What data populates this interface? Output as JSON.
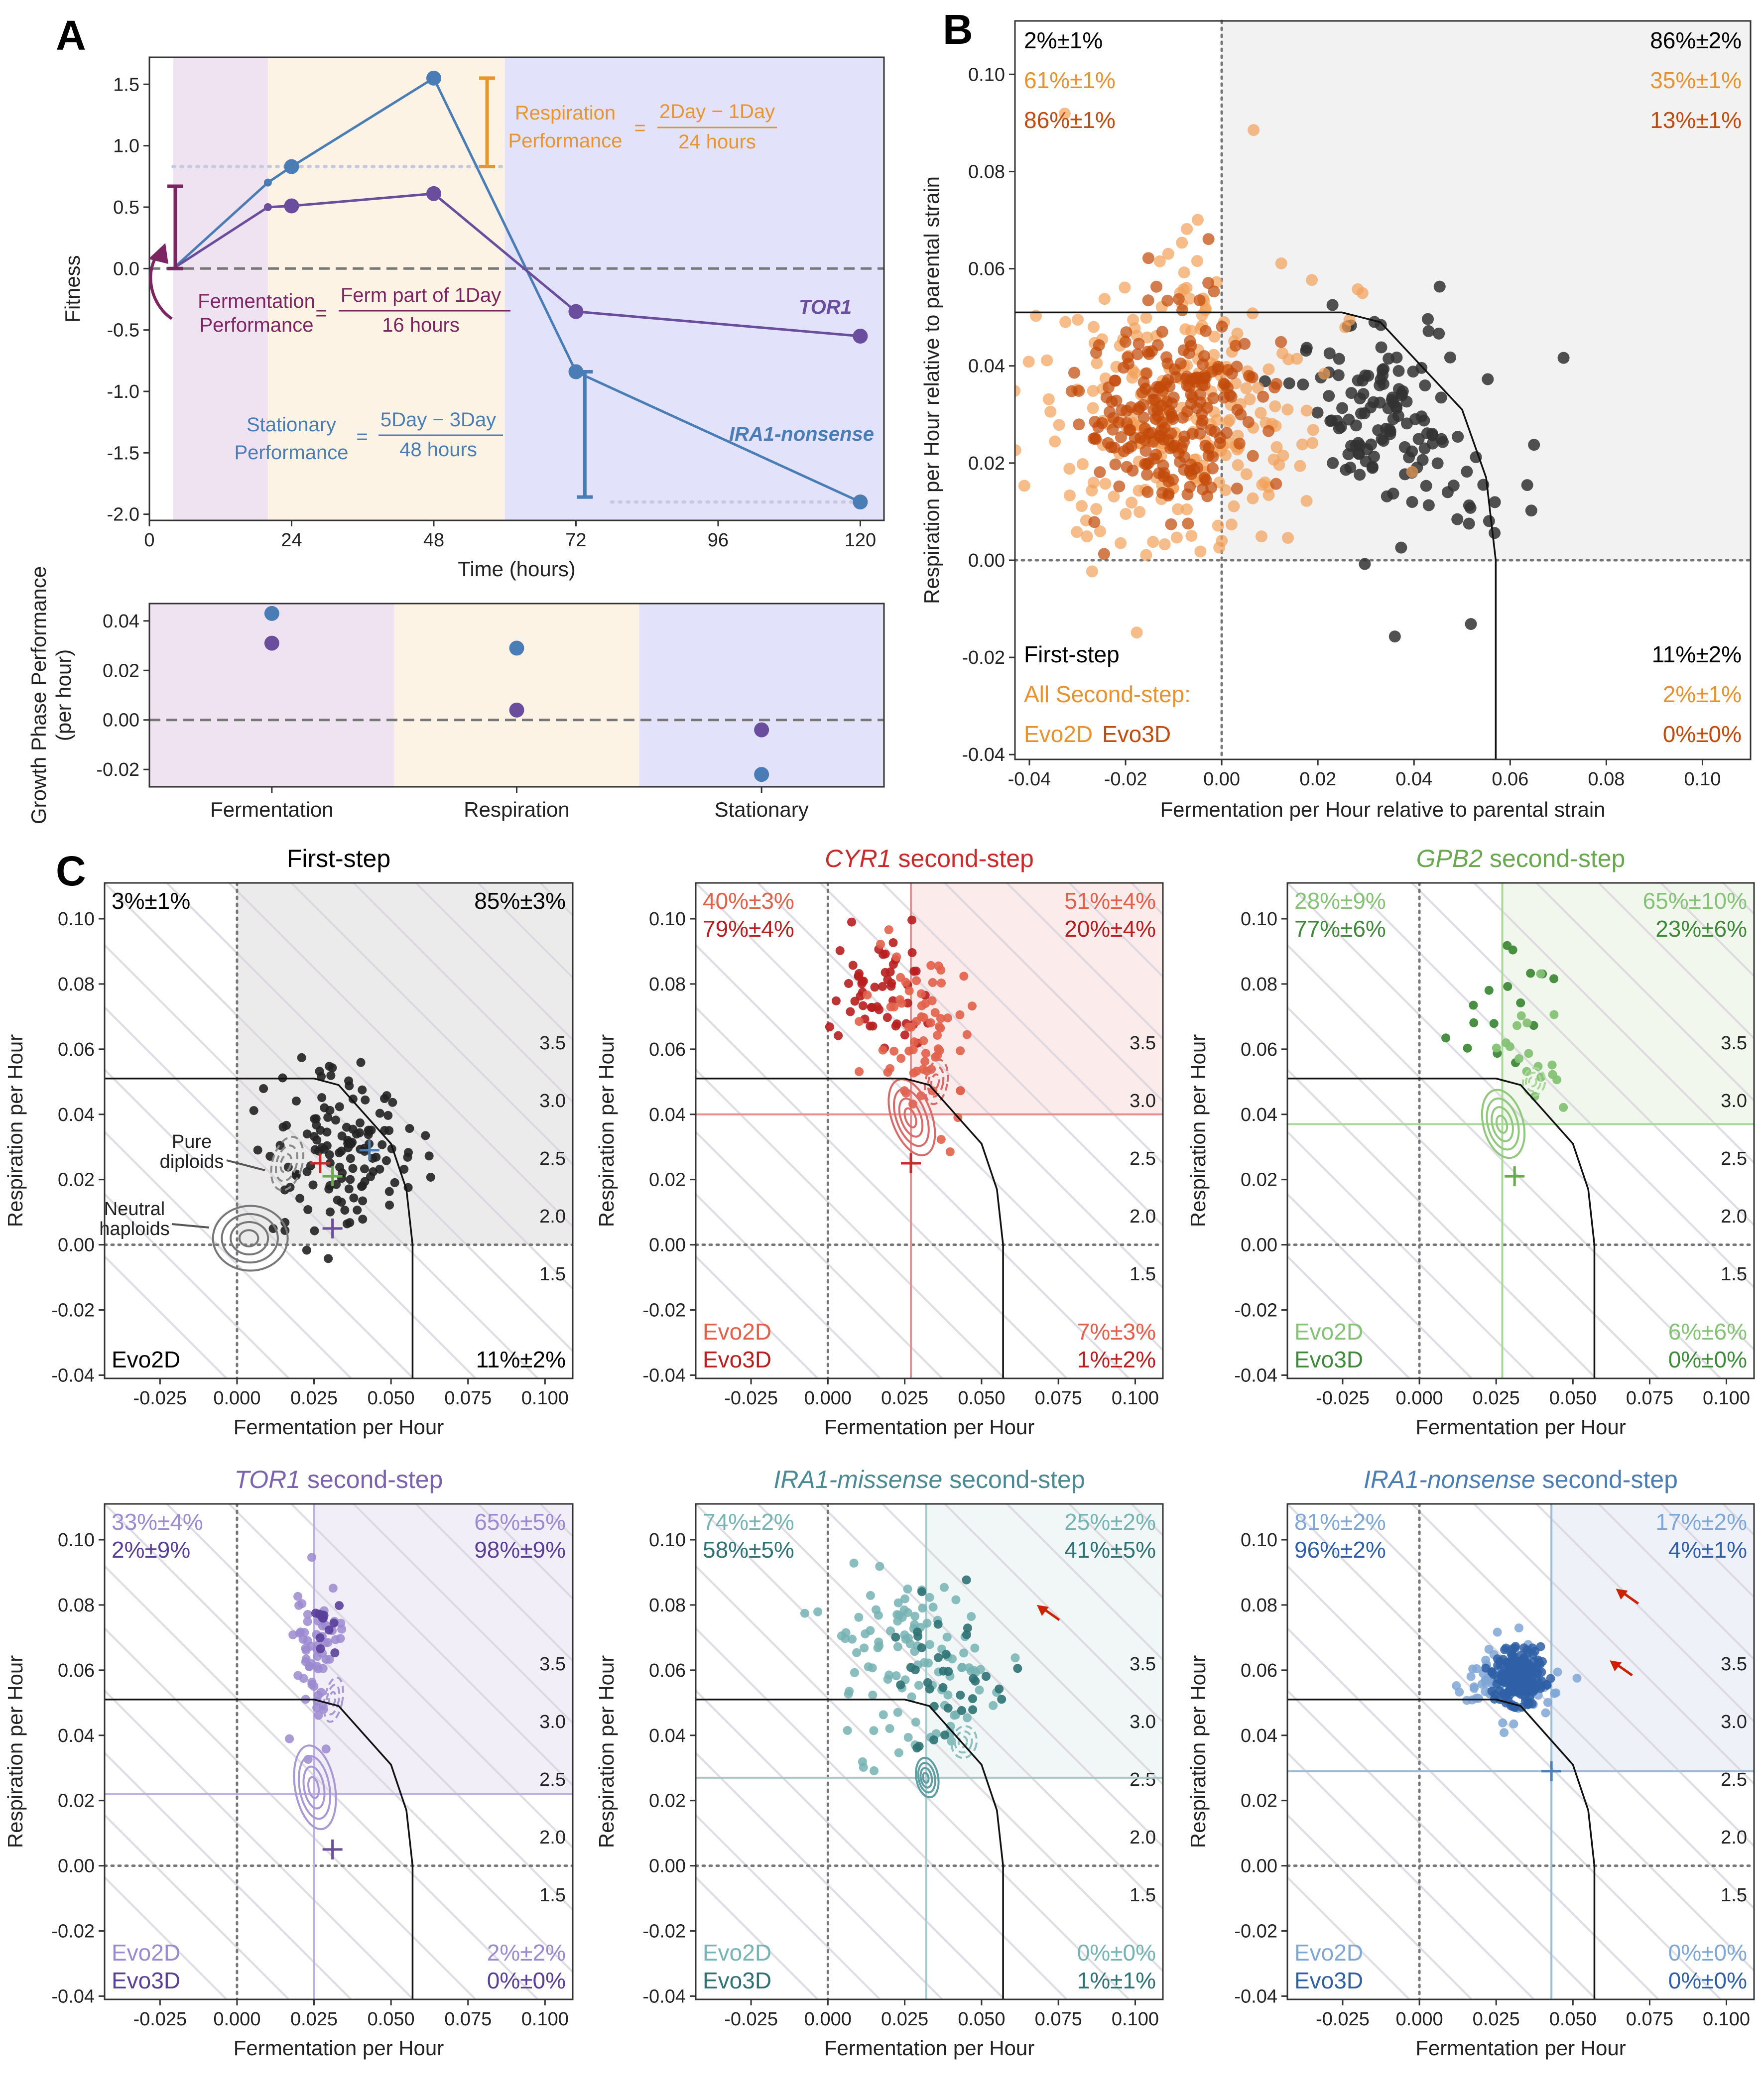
{
  "panel_labels": [
    "A",
    "B",
    "C"
  ],
  "chart_data": [
    {
      "id": "A_top",
      "type": "line",
      "xlabel": "Time (hours)",
      "ylabel": "Fitness",
      "xlim": [
        0,
        124
      ],
      "ylim": [
        -2.05,
        1.72
      ],
      "xticks": [
        0,
        24,
        48,
        72,
        96,
        120
      ],
      "yticks": [
        1.5,
        1.0,
        0.5,
        0.0,
        -0.5,
        -1.0,
        -1.5,
        -2.0
      ],
      "phases": [
        {
          "name": "Fermentation",
          "from": 4,
          "to": 20,
          "color": "#efe3f1"
        },
        {
          "name": "Respiration",
          "from": 20,
          "to": 60,
          "color": "#fcf3e4"
        },
        {
          "name": "Stationary",
          "from": 60,
          "to": 124,
          "color": "#e2e2fb"
        }
      ],
      "series": [
        {
          "name": "IRA1-nonsense",
          "color": "#4a7db6",
          "x": [
            4,
            20,
            24,
            48,
            72,
            120
          ],
          "values": [
            0,
            0.7,
            0.83,
            1.55,
            -0.84,
            -1.9
          ],
          "large_from": 2
        },
        {
          "name": "TOR1",
          "color": "#6a4d9c",
          "x": [
            4,
            20,
            24,
            48,
            72,
            120
          ],
          "values": [
            0,
            0.5,
            0.51,
            0.61,
            -0.35,
            -0.55
          ],
          "large_from": 2
        }
      ],
      "annotations": {
        "respiration_label": [
          "Respiration",
          "Performance"
        ],
        "respiration_eq": "=",
        "respiration_num": "2Day − 1Day",
        "respiration_den": "24 hours",
        "fermentation_label": [
          "Fermentation",
          "Performance"
        ],
        "fermentation_eq": "=",
        "fermentation_num": "Ferm part of 1Day",
        "fermentation_den": "16 hours",
        "stationary_label": [
          "Stationary",
          "Performance"
        ],
        "stationary_eq": "=",
        "stationary_num": "5Day − 3Day",
        "stationary_den": "48 hours",
        "tor1_label": "TOR1",
        "ira1_label": "IRA1-nonsense"
      },
      "colors": {
        "respiration": "#e8952e",
        "fermentation": "#7b2561",
        "stationary": "#4a7db6"
      }
    },
    {
      "id": "A_bottom",
      "type": "scatter",
      "ylabel": [
        "Growth Phase Performance",
        "(per hour)"
      ],
      "categories": [
        "Fermentation",
        "Respiration",
        "Stationary"
      ],
      "ylim": [
        -0.027,
        0.047
      ],
      "yticks": [
        0.04,
        0.02,
        0.0,
        -0.02
      ],
      "series": [
        {
          "name": "IRA1-nonsense",
          "color": "#4a7db6",
          "values": [
            0.043,
            0.029,
            -0.022
          ]
        },
        {
          "name": "TOR1",
          "color": "#6a4d9c",
          "values": [
            0.031,
            0.004,
            -0.004
          ]
        }
      ]
    },
    {
      "id": "B",
      "type": "scatter",
      "xlabel": "Fermentation per Hour relative to parental strain",
      "ylabel": "Respiration per Hour relative to parental strain",
      "xlim": [
        -0.043,
        0.11
      ],
      "ylim": [
        -0.041,
        0.111
      ],
      "xticks": [
        -0.04,
        -0.02,
        0.0,
        0.02,
        0.04,
        0.06,
        0.08,
        0.1
      ],
      "yticks": [
        0.1,
        0.08,
        0.06,
        0.04,
        0.02,
        0.0,
        -0.02,
        -0.04
      ],
      "quadrant_text": {
        "top_left": [
          {
            "text": "2%±1%",
            "color": "#000000"
          },
          {
            "text": "61%±1%",
            "color": "#e8922e"
          },
          {
            "text": "86%±1%",
            "color": "#c24a0a"
          }
        ],
        "top_right": [
          {
            "text": "86%±2%",
            "color": "#000000"
          },
          {
            "text": "35%±1%",
            "color": "#e8922e"
          },
          {
            "text": "13%±1%",
            "color": "#c24a0a"
          }
        ],
        "bottom_right": [
          {
            "text": "11%±2%",
            "color": "#000000"
          },
          {
            "text": "2%±1%",
            "color": "#e8922e"
          },
          {
            "text": "0%±0%",
            "color": "#c24a0a"
          }
        ]
      },
      "legend": {
        "first": "First-step",
        "all": "All Second-step:",
        "evo2d": "Evo2D",
        "evo3d": "Evo3D"
      },
      "groups": [
        {
          "name": "First-step",
          "color": "#333333"
        },
        {
          "name": "Evo2D",
          "color": "#e8922e"
        },
        {
          "name": "Evo3D",
          "color": "#c24a0a"
        }
      ],
      "pareto_front": [
        [
          -0.043,
          0.051
        ],
        [
          0.025,
          0.051
        ],
        [
          0.033,
          0.049
        ],
        [
          0.05,
          0.031
        ],
        [
          0.055,
          0.017
        ],
        [
          0.057,
          0.0
        ],
        [
          0.057,
          -0.041
        ]
      ]
    },
    {
      "id": "C1",
      "type": "scatter",
      "title": "First-step",
      "title_italic": "",
      "title_color": "#000000",
      "xlabel": "Fermentation per Hour",
      "ylabel": "Respiration per Hour",
      "xlim": [
        -0.043,
        0.109
      ],
      "ylim": [
        -0.041,
        0.111
      ],
      "xticks": [
        -0.025,
        0.0,
        0.025,
        0.05,
        0.075,
        0.1
      ],
      "yticks": [
        0.1,
        0.08,
        0.06,
        0.04,
        0.02,
        0.0,
        -0.02,
        -0.04
      ],
      "shade": "#e8e8e8",
      "cross": null,
      "quadrants": {
        "tl": [
          "3%±1%"
        ],
        "tr": [
          "85%±3%"
        ],
        "br": [
          "11%±2%"
        ]
      },
      "quadrant_colors": [
        "#000000"
      ],
      "legend": [
        "Evo2D"
      ],
      "legend_colors": [
        "#000000"
      ],
      "contour_labels": [
        "Pure",
        "diploids",
        "Neutral",
        "haploids"
      ],
      "iso_labels": [
        "3.5",
        "3.0",
        "2.5",
        "2.0",
        "1.5"
      ]
    },
    {
      "id": "C2",
      "type": "scatter",
      "title": " second-step",
      "title_italic": "CYR1",
      "title_color": "#cc2a2a",
      "xlabel": "Fermentation per Hour",
      "ylabel": "Respiration per Hour",
      "xlim": [
        -0.043,
        0.109
      ],
      "ylim": [
        -0.041,
        0.111
      ],
      "xticks": [
        -0.025,
        0.0,
        0.025,
        0.05,
        0.075,
        0.1
      ],
      "yticks": [
        0.1,
        0.08,
        0.06,
        0.04,
        0.02,
        0.0,
        -0.02,
        -0.04
      ],
      "shade": "#fbe7e7",
      "cross": [
        0.027,
        0.04
      ],
      "cross_color": "#e88f8f",
      "quadrants": {
        "tl": [
          "40%±3%",
          "79%±4%"
        ],
        "tr": [
          "51%±4%",
          "20%±4%"
        ],
        "br": [
          "7%±3%",
          "1%±2%"
        ]
      },
      "quadrant_colors": [
        "#e2604a",
        "#b81e1e"
      ],
      "legend": [
        "Evo2D",
        "Evo3D"
      ],
      "legend_colors": [
        "#e2604a",
        "#b81e1e"
      ],
      "iso_labels": [
        "3.5",
        "3.0",
        "2.5",
        "2.0",
        "1.5"
      ]
    },
    {
      "id": "C3",
      "type": "scatter",
      "title": " second-step",
      "title_italic": "GPB2",
      "title_color": "#6aa84f",
      "xlabel": "Fermentation per Hour",
      "ylabel": "Respiration per Hour",
      "xlim": [
        -0.043,
        0.109
      ],
      "ylim": [
        -0.041,
        0.111
      ],
      "xticks": [
        -0.025,
        0.0,
        0.025,
        0.05,
        0.075,
        0.1
      ],
      "yticks": [
        0.1,
        0.08,
        0.06,
        0.04,
        0.02,
        0.0,
        -0.02,
        -0.04
      ],
      "shade": "#eef6ea",
      "cross": [
        0.027,
        0.037
      ],
      "cross_color": "#a9d89a",
      "quadrants": {
        "tl": [
          "28%±9%",
          "77%±6%"
        ],
        "tr": [
          "65%±10%",
          "23%±6%"
        ],
        "br": [
          "6%±6%",
          "0%±0%"
        ]
      },
      "quadrant_colors": [
        "#84c275",
        "#3f8a3a"
      ],
      "legend": [
        "Evo2D",
        "Evo3D"
      ],
      "legend_colors": [
        "#84c275",
        "#3f8a3a"
      ],
      "iso_labels": [
        "3.5",
        "3.0",
        "2.5",
        "2.0",
        "1.5"
      ]
    },
    {
      "id": "C4",
      "type": "scatter",
      "title": " second-step",
      "title_italic": "TOR1",
      "title_color": "#7a62b0",
      "xlabel": "Fermentation per Hour",
      "ylabel": "Respiration per Hour",
      "xlim": [
        -0.043,
        0.109
      ],
      "ylim": [
        -0.041,
        0.111
      ],
      "xticks": [
        -0.025,
        0.0,
        0.025,
        0.05,
        0.075,
        0.1
      ],
      "yticks": [
        0.1,
        0.08,
        0.06,
        0.04,
        0.02,
        0.0,
        -0.02,
        -0.04
      ],
      "shade": "#eeebf7",
      "cross": [
        0.025,
        0.022
      ],
      "cross_color": "#bfb1e2",
      "quadrants": {
        "tl": [
          "33%±4%",
          "2%±9%"
        ],
        "tr": [
          "65%±5%",
          "98%±9%"
        ],
        "br": [
          "2%±2%",
          "0%±0%"
        ]
      },
      "quadrant_colors": [
        "#9b8ad0",
        "#5a3f9a"
      ],
      "legend": [
        "Evo2D",
        "Evo3D"
      ],
      "legend_colors": [
        "#9b8ad0",
        "#5a3f9a"
      ],
      "iso_labels": [
        "3.5",
        "3.0",
        "2.5",
        "2.0",
        "1.5"
      ]
    },
    {
      "id": "C5",
      "type": "scatter",
      "title": " second-step",
      "title_italic": "IRA1-missense",
      "title_color": "#4a8a93",
      "xlabel": "Fermentation per Hour",
      "ylabel": "Respiration per Hour",
      "xlim": [
        -0.043,
        0.109
      ],
      "ylim": [
        -0.041,
        0.111
      ],
      "xticks": [
        -0.025,
        0.0,
        0.025,
        0.05,
        0.075,
        0.1
      ],
      "yticks": [
        0.1,
        0.08,
        0.06,
        0.04,
        0.02,
        0.0,
        -0.02,
        -0.04
      ],
      "shade": "#eef4f5",
      "cross": [
        0.032,
        0.027
      ],
      "cross_color": "#a8c8cc",
      "quadrants": {
        "tl": [
          "74%±2%",
          "58%±5%"
        ],
        "tr": [
          "25%±2%",
          "41%±5%"
        ],
        "br": [
          "0%±0%",
          "1%±1%"
        ]
      },
      "quadrant_colors": [
        "#76b3b3",
        "#2f7274"
      ],
      "legend": [
        "Evo2D",
        "Evo3D"
      ],
      "legend_colors": [
        "#76b3b3",
        "#2f7274"
      ],
      "iso_labels": [
        "3.5",
        "3.0",
        "2.5",
        "2.0",
        "1.5"
      ]
    },
    {
      "id": "C6",
      "type": "scatter",
      "title": " second-step",
      "title_italic": "IRA1-nonsense",
      "title_color": "#4a7db6",
      "xlabel": "Fermentation per Hour",
      "ylabel": "Respiration per Hour",
      "xlim": [
        -0.043,
        0.109
      ],
      "ylim": [
        -0.041,
        0.111
      ],
      "xticks": [
        -0.025,
        0.0,
        0.025,
        0.05,
        0.075,
        0.1
      ],
      "yticks": [
        0.1,
        0.08,
        0.06,
        0.04,
        0.02,
        0.0,
        -0.02,
        -0.04
      ],
      "shade": "#eceef8",
      "cross": [
        0.043,
        0.029
      ],
      "cross_color": "#9dbad8",
      "quadrants": {
        "tl": [
          "81%±2%",
          "96%±2%"
        ],
        "tr": [
          "17%±2%",
          "4%±1%"
        ],
        "br": [
          "0%±0%",
          "0%±0%"
        ]
      },
      "quadrant_colors": [
        "#7fa7d6",
        "#2f5fa6"
      ],
      "legend": [
        "Evo2D",
        "Evo3D"
      ],
      "legend_colors": [
        "#7fa7d6",
        "#2f5fa6"
      ],
      "iso_labels": [
        "3.5",
        "3.0",
        "2.5",
        "2.0",
        "1.5"
      ]
    }
  ]
}
